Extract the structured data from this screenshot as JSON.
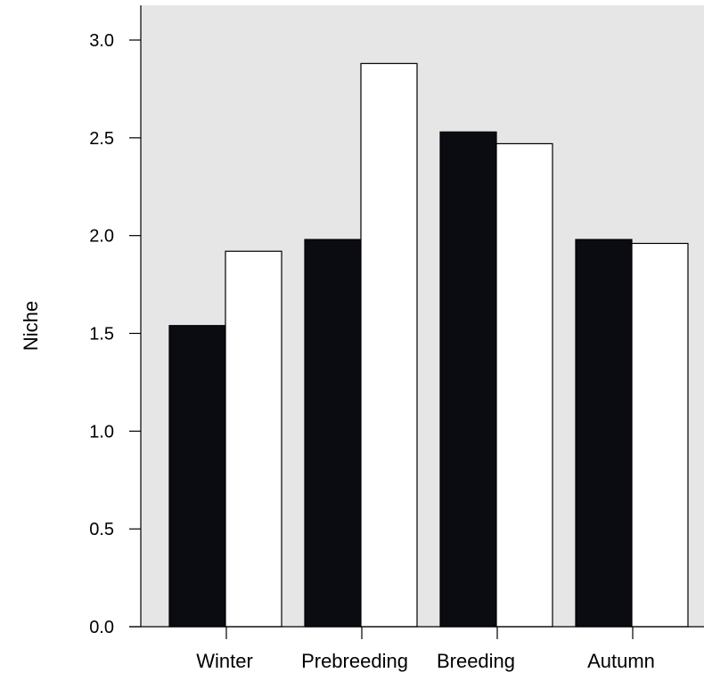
{
  "chart_data": {
    "type": "bar",
    "title": "",
    "xlabel": "",
    "ylabel": "Niche",
    "ylim": [
      0,
      3.0
    ],
    "yticks": [
      "0.0",
      "0.5",
      "1.0",
      "1.5",
      "2.0",
      "2.5",
      "3.0"
    ],
    "grid": false,
    "legend": "none",
    "categories": [
      "Winter",
      "Prebreeding",
      "Breeding",
      "Autumn"
    ],
    "series": [
      {
        "values": [
          1.54,
          1.98,
          2.53,
          1.98
        ],
        "color": "#0b0b12"
      },
      {
        "values": [
          1.92,
          2.88,
          2.47,
          1.96
        ],
        "color": "#ffffff"
      }
    ],
    "plot_background": "#e6e6e6"
  }
}
